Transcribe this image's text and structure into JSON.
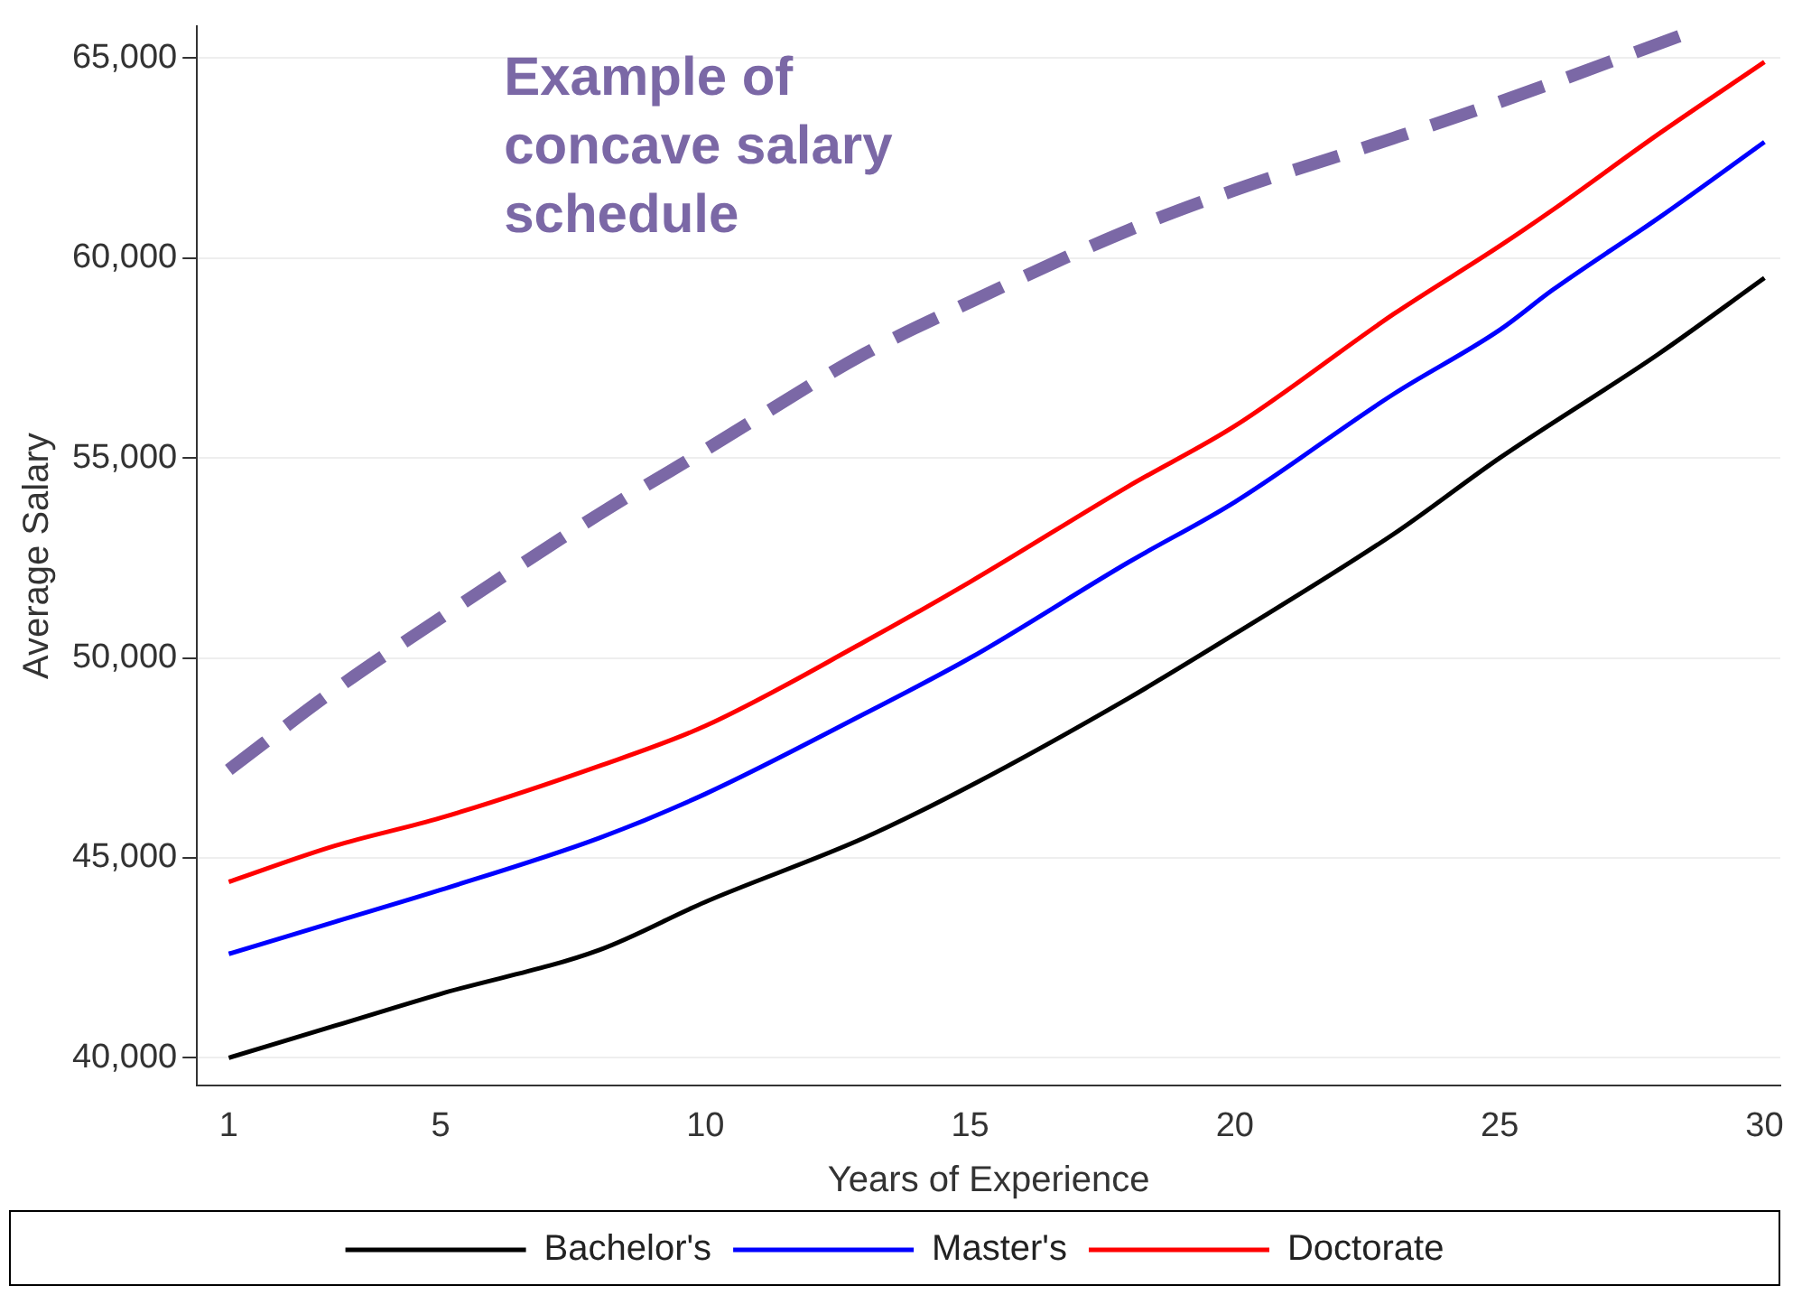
{
  "chart_data": {
    "type": "line",
    "xlabel": "Years of Experience",
    "ylabel": "Average Salary",
    "xlim": [
      0.4,
      30.3
    ],
    "xticks": [
      1,
      5,
      10,
      15,
      20,
      25,
      30
    ],
    "ylim": [
      39300,
      65800
    ],
    "yticks": [
      {
        "value": 40000,
        "label": "40,000"
      },
      {
        "value": 45000,
        "label": "45,000"
      },
      {
        "value": 50000,
        "label": "50,000"
      },
      {
        "value": 55000,
        "label": "55,000"
      },
      {
        "value": 60000,
        "label": "60,000"
      },
      {
        "value": 65000,
        "label": "65,000"
      }
    ],
    "grid": "y",
    "legend": "bottom",
    "marker": "none",
    "line_style": "solid",
    "annotations": [
      "Example of concave salary schedule"
    ],
    "series": [
      {
        "name": "Bachelor's",
        "color": "#000000",
        "x": [
          1,
          3,
          5,
          8,
          10,
          13,
          15,
          18,
          20,
          23,
          25,
          28,
          30
        ],
        "values": [
          40000,
          40800,
          41600,
          42700,
          43900,
          45500,
          46800,
          49000,
          50600,
          53100,
          55000,
          57600,
          59500
        ]
      },
      {
        "name": "Master's",
        "color": "#0000ff",
        "x": [
          1,
          3,
          5,
          8,
          10,
          13,
          15,
          18,
          20,
          23,
          25,
          26,
          28,
          30
        ],
        "values": [
          42600,
          43400,
          44200,
          45500,
          46600,
          48600,
          50000,
          52400,
          53900,
          56600,
          58200,
          59200,
          61000,
          62900
        ]
      },
      {
        "name": "Doctorate",
        "color": "#ff0000",
        "x": [
          1,
          3,
          5,
          8,
          10,
          13,
          15,
          18,
          20,
          23,
          25,
          26,
          28,
          30
        ],
        "values": [
          44400,
          45300,
          46000,
          47300,
          48300,
          50400,
          51900,
          54300,
          55800,
          58600,
          60300,
          61200,
          63100,
          64900
        ]
      },
      {
        "color": "#7b68a6",
        "line_style": "dashed",
        "x": [
          1,
          3,
          5,
          8,
          10,
          13,
          15,
          18,
          20,
          23,
          25,
          28.5
        ],
        "values": [
          47200,
          49200,
          51000,
          53600,
          55200,
          57600,
          58900,
          60700,
          61700,
          63000,
          63900,
          65600
        ]
      }
    ]
  }
}
